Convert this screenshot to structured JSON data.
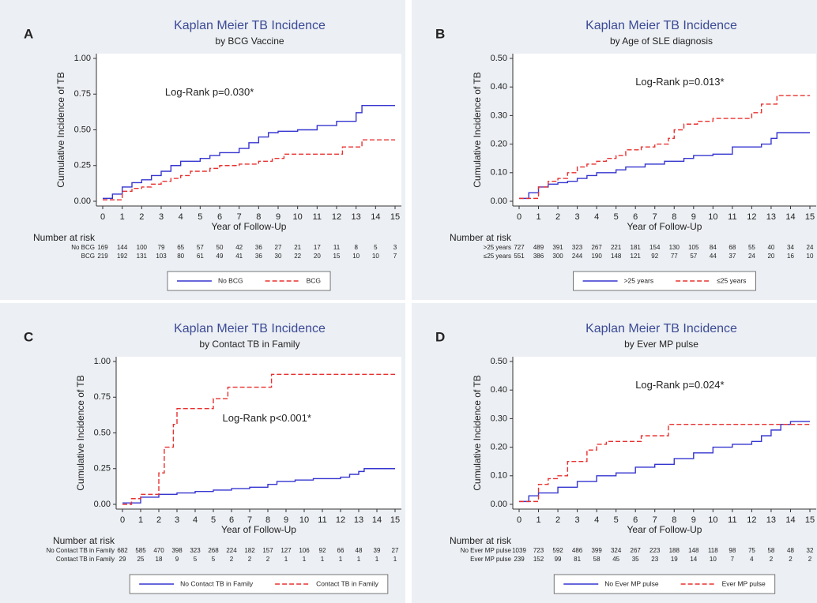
{
  "chart_data": [
    {
      "type": "line",
      "step": true,
      "label": "A",
      "title": "Kaplan Meier TB Incidence",
      "subtitle": "by BCG Vaccine",
      "y_label": "Cumulative Incidence of TB",
      "x_label": "Year of Follow-Up",
      "annotation": "Log-Rank p=0.030*",
      "xlim": [
        0,
        15
      ],
      "xticks": [
        0,
        1,
        2,
        3,
        4,
        5,
        6,
        7,
        8,
        9,
        10,
        11,
        12,
        13,
        14,
        15
      ],
      "ylim": [
        0,
        1
      ],
      "yticks": [
        {
          "value": 0,
          "label": "0.00"
        },
        {
          "value": 0.25,
          "label": "0.25"
        },
        {
          "value": 0.5,
          "label": "0.50"
        },
        {
          "value": 0.75,
          "label": "0.75"
        },
        {
          "value": 1,
          "label": "1.00"
        }
      ],
      "series": [
        {
          "name": "No BCG",
          "color": "#3535d0",
          "dash": false,
          "x": [
            0,
            0.5,
            1,
            1.5,
            2,
            2.5,
            3,
            3.5,
            4,
            5,
            5.5,
            6,
            7,
            7.5,
            8,
            8.5,
            9,
            10,
            11,
            12,
            13,
            13.3,
            15
          ],
          "values": [
            0.02,
            0.05,
            0.1,
            0.13,
            0.15,
            0.18,
            0.21,
            0.25,
            0.28,
            0.3,
            0.32,
            0.34,
            0.37,
            0.41,
            0.45,
            0.48,
            0.49,
            0.5,
            0.53,
            0.56,
            0.62,
            0.67,
            0.67
          ]
        },
        {
          "name": "BCG",
          "color": "#e8302f",
          "dash": true,
          "x": [
            0,
            1,
            1.5,
            2,
            2.5,
            3,
            3.5,
            4,
            4.5,
            5.5,
            6,
            7,
            8,
            8.7,
            9.3,
            11,
            12.3,
            13.3,
            15
          ],
          "values": [
            0.01,
            0.07,
            0.09,
            0.1,
            0.12,
            0.14,
            0.16,
            0.18,
            0.21,
            0.23,
            0.25,
            0.26,
            0.28,
            0.3,
            0.33,
            0.33,
            0.38,
            0.43,
            0.43
          ]
        }
      ],
      "risk_table": {
        "title": "Number at risk",
        "rows": [
          {
            "name": "No BCG",
            "values": [
              169,
              144,
              100,
              79,
              65,
              57,
              50,
              42,
              36,
              27,
              21,
              17,
              11,
              8,
              5,
              3
            ]
          },
          {
            "name": "BCG",
            "values": [
              219,
              192,
              131,
              103,
              80,
              61,
              49,
              41,
              36,
              30,
              22,
              20,
              15,
              10,
              10,
              7
            ]
          }
        ]
      }
    },
    {
      "type": "line",
      "step": true,
      "label": "B",
      "title": "Kaplan Meier TB Incidence",
      "subtitle": "by Age of SLE diagnosis",
      "y_label": "Cumulative Incidence of TB",
      "x_label": "Year of Follow-Up",
      "annotation": "Log-Rank p=0.013*",
      "xlim": [
        0,
        15
      ],
      "xticks": [
        0,
        1,
        2,
        3,
        4,
        5,
        6,
        7,
        8,
        9,
        10,
        11,
        12,
        13,
        14,
        15
      ],
      "ylim": [
        0,
        0.5
      ],
      "yticks": [
        {
          "value": 0,
          "label": "0.00"
        },
        {
          "value": 0.1,
          "label": "0.10"
        },
        {
          "value": 0.2,
          "label": "0.20"
        },
        {
          "value": 0.3,
          "label": "0.30"
        },
        {
          "value": 0.4,
          "label": "0.40"
        },
        {
          "value": 0.5,
          "label": "0.50"
        }
      ],
      "series": [
        {
          "name": ">25 years",
          "color": "#3535d0",
          "dash": false,
          "x": [
            0,
            0.5,
            1,
            1.5,
            2,
            2.5,
            3,
            3.5,
            4,
            5,
            5.5,
            6.5,
            7.5,
            8.5,
            9,
            10,
            11,
            12,
            12.5,
            13,
            13.3,
            15
          ],
          "values": [
            0.01,
            0.03,
            0.05,
            0.06,
            0.065,
            0.07,
            0.08,
            0.09,
            0.1,
            0.11,
            0.12,
            0.13,
            0.14,
            0.15,
            0.16,
            0.165,
            0.19,
            0.19,
            0.2,
            0.22,
            0.24,
            0.24
          ]
        },
        {
          "name": "≤25 years",
          "color": "#e8302f",
          "dash": true,
          "x": [
            0,
            1,
            1.5,
            2,
            2.5,
            3,
            3.5,
            4,
            4.5,
            5,
            5.5,
            6.3,
            7,
            7.7,
            8,
            8.5,
            9.2,
            10,
            11.3,
            12,
            12.5,
            13.3,
            15
          ],
          "values": [
            0.01,
            0.05,
            0.07,
            0.08,
            0.1,
            0.12,
            0.13,
            0.14,
            0.15,
            0.16,
            0.18,
            0.19,
            0.2,
            0.22,
            0.25,
            0.27,
            0.28,
            0.29,
            0.29,
            0.31,
            0.34,
            0.37,
            0.37
          ]
        }
      ],
      "risk_table": {
        "title": "Number at risk",
        "rows": [
          {
            "name": ">25 years",
            "values": [
              727,
              489,
              391,
              323,
              267,
              221,
              181,
              154,
              130,
              105,
              84,
              68,
              55,
              40,
              34,
              24
            ]
          },
          {
            "name": "≤25 years",
            "values": [
              551,
              386,
              300,
              244,
              190,
              148,
              121,
              92,
              77,
              57,
              44,
              37,
              24,
              20,
              16,
              10
            ]
          }
        ]
      }
    },
    {
      "type": "line",
      "step": true,
      "label": "C",
      "title": "Kaplan Meier TB Incidence",
      "subtitle": "by Contact TB in Family",
      "y_label": "Cumulative Incidence of TB",
      "x_label": "Year of Follow-Up",
      "annotation": "Log-Rank p<0.001*",
      "xlim": [
        0,
        15
      ],
      "xticks": [
        0,
        1,
        2,
        3,
        4,
        5,
        6,
        7,
        8,
        9,
        10,
        11,
        12,
        13,
        14,
        15
      ],
      "ylim": [
        0,
        1
      ],
      "yticks": [
        {
          "value": 0,
          "label": "0.00"
        },
        {
          "value": 0.25,
          "label": "0.25"
        },
        {
          "value": 0.5,
          "label": "0.50"
        },
        {
          "value": 0.75,
          "label": "0.75"
        },
        {
          "value": 1,
          "label": "1.00"
        }
      ],
      "series": [
        {
          "name": "No Contact TB in Family",
          "color": "#3535d0",
          "dash": false,
          "x": [
            0,
            1,
            2,
            3,
            4,
            5,
            6,
            7,
            8,
            8.5,
            9.5,
            10.5,
            12,
            12.5,
            13,
            13.3,
            15
          ],
          "values": [
            0.01,
            0.05,
            0.07,
            0.08,
            0.09,
            0.1,
            0.11,
            0.12,
            0.14,
            0.16,
            0.17,
            0.18,
            0.19,
            0.21,
            0.23,
            0.25,
            0.25
          ]
        },
        {
          "name": "Contact TB in Family",
          "color": "#e8302f",
          "dash": true,
          "x": [
            0,
            0.5,
            1,
            2,
            2.3,
            2.8,
            3,
            4.5,
            5,
            5.8,
            8.2,
            15
          ],
          "values": [
            0,
            0.04,
            0.07,
            0.22,
            0.4,
            0.56,
            0.67,
            0.67,
            0.74,
            0.82,
            0.91,
            0.91
          ]
        }
      ],
      "risk_table": {
        "title": "Number at risk",
        "rows": [
          {
            "name": "No Contact TB in Family",
            "values": [
              682,
              585,
              470,
              398,
              323,
              268,
              224,
              182,
              157,
              127,
              106,
              92,
              66,
              48,
              39,
              27
            ]
          },
          {
            "name": "Contact TB in Family",
            "values": [
              29,
              25,
              18,
              9,
              5,
              5,
              2,
              2,
              2,
              1,
              1,
              1,
              1,
              1,
              1,
              1
            ]
          }
        ]
      }
    },
    {
      "type": "line",
      "step": true,
      "label": "D",
      "title": "Kaplan Meier TB Incidence",
      "subtitle": "by Ever MP pulse",
      "y_label": "Cumulative Incidence of TB",
      "x_label": "Year of Follow-Up",
      "annotation": "Log-Rank p=0.024*",
      "xlim": [
        0,
        15
      ],
      "xticks": [
        0,
        1,
        2,
        3,
        4,
        5,
        6,
        7,
        8,
        9,
        10,
        11,
        12,
        13,
        14,
        15
      ],
      "ylim": [
        0,
        0.5
      ],
      "yticks": [
        {
          "value": 0,
          "label": "0.00"
        },
        {
          "value": 0.1,
          "label": "0.10"
        },
        {
          "value": 0.2,
          "label": "0.20"
        },
        {
          "value": 0.3,
          "label": "0.30"
        },
        {
          "value": 0.4,
          "label": "0.40"
        },
        {
          "value": 0.5,
          "label": "0.50"
        }
      ],
      "series": [
        {
          "name": "No Ever MP pulse",
          "color": "#3535d0",
          "dash": false,
          "x": [
            0,
            0.5,
            1,
            2,
            3,
            4,
            5,
            6,
            7,
            8,
            9,
            10,
            11,
            12,
            12.5,
            13,
            13.5,
            14,
            15
          ],
          "values": [
            0.01,
            0.03,
            0.04,
            0.06,
            0.08,
            0.1,
            0.11,
            0.13,
            0.14,
            0.16,
            0.18,
            0.2,
            0.21,
            0.22,
            0.24,
            0.26,
            0.28,
            0.29,
            0.29
          ]
        },
        {
          "name": "Ever MP pulse",
          "color": "#e8302f",
          "dash": true,
          "x": [
            0,
            1,
            1.5,
            2,
            2.5,
            3.5,
            4,
            4.5,
            6.3,
            7.7,
            15
          ],
          "values": [
            0.01,
            0.07,
            0.09,
            0.1,
            0.15,
            0.19,
            0.21,
            0.22,
            0.24,
            0.28,
            0.28
          ]
        }
      ],
      "risk_table": {
        "title": "Number at risk",
        "rows": [
          {
            "name": "No Ever MP pulse",
            "values": [
              1039,
              723,
              592,
              486,
              399,
              324,
              267,
              223,
              188,
              148,
              118,
              98,
              75,
              58,
              48,
              32
            ]
          },
          {
            "name": "Ever MP pulse",
            "values": [
              239,
              152,
              99,
              81,
              58,
              45,
              35,
              23,
              19,
              14,
              10,
              7,
              4,
              2,
              2,
              2
            ]
          }
        ]
      }
    }
  ]
}
